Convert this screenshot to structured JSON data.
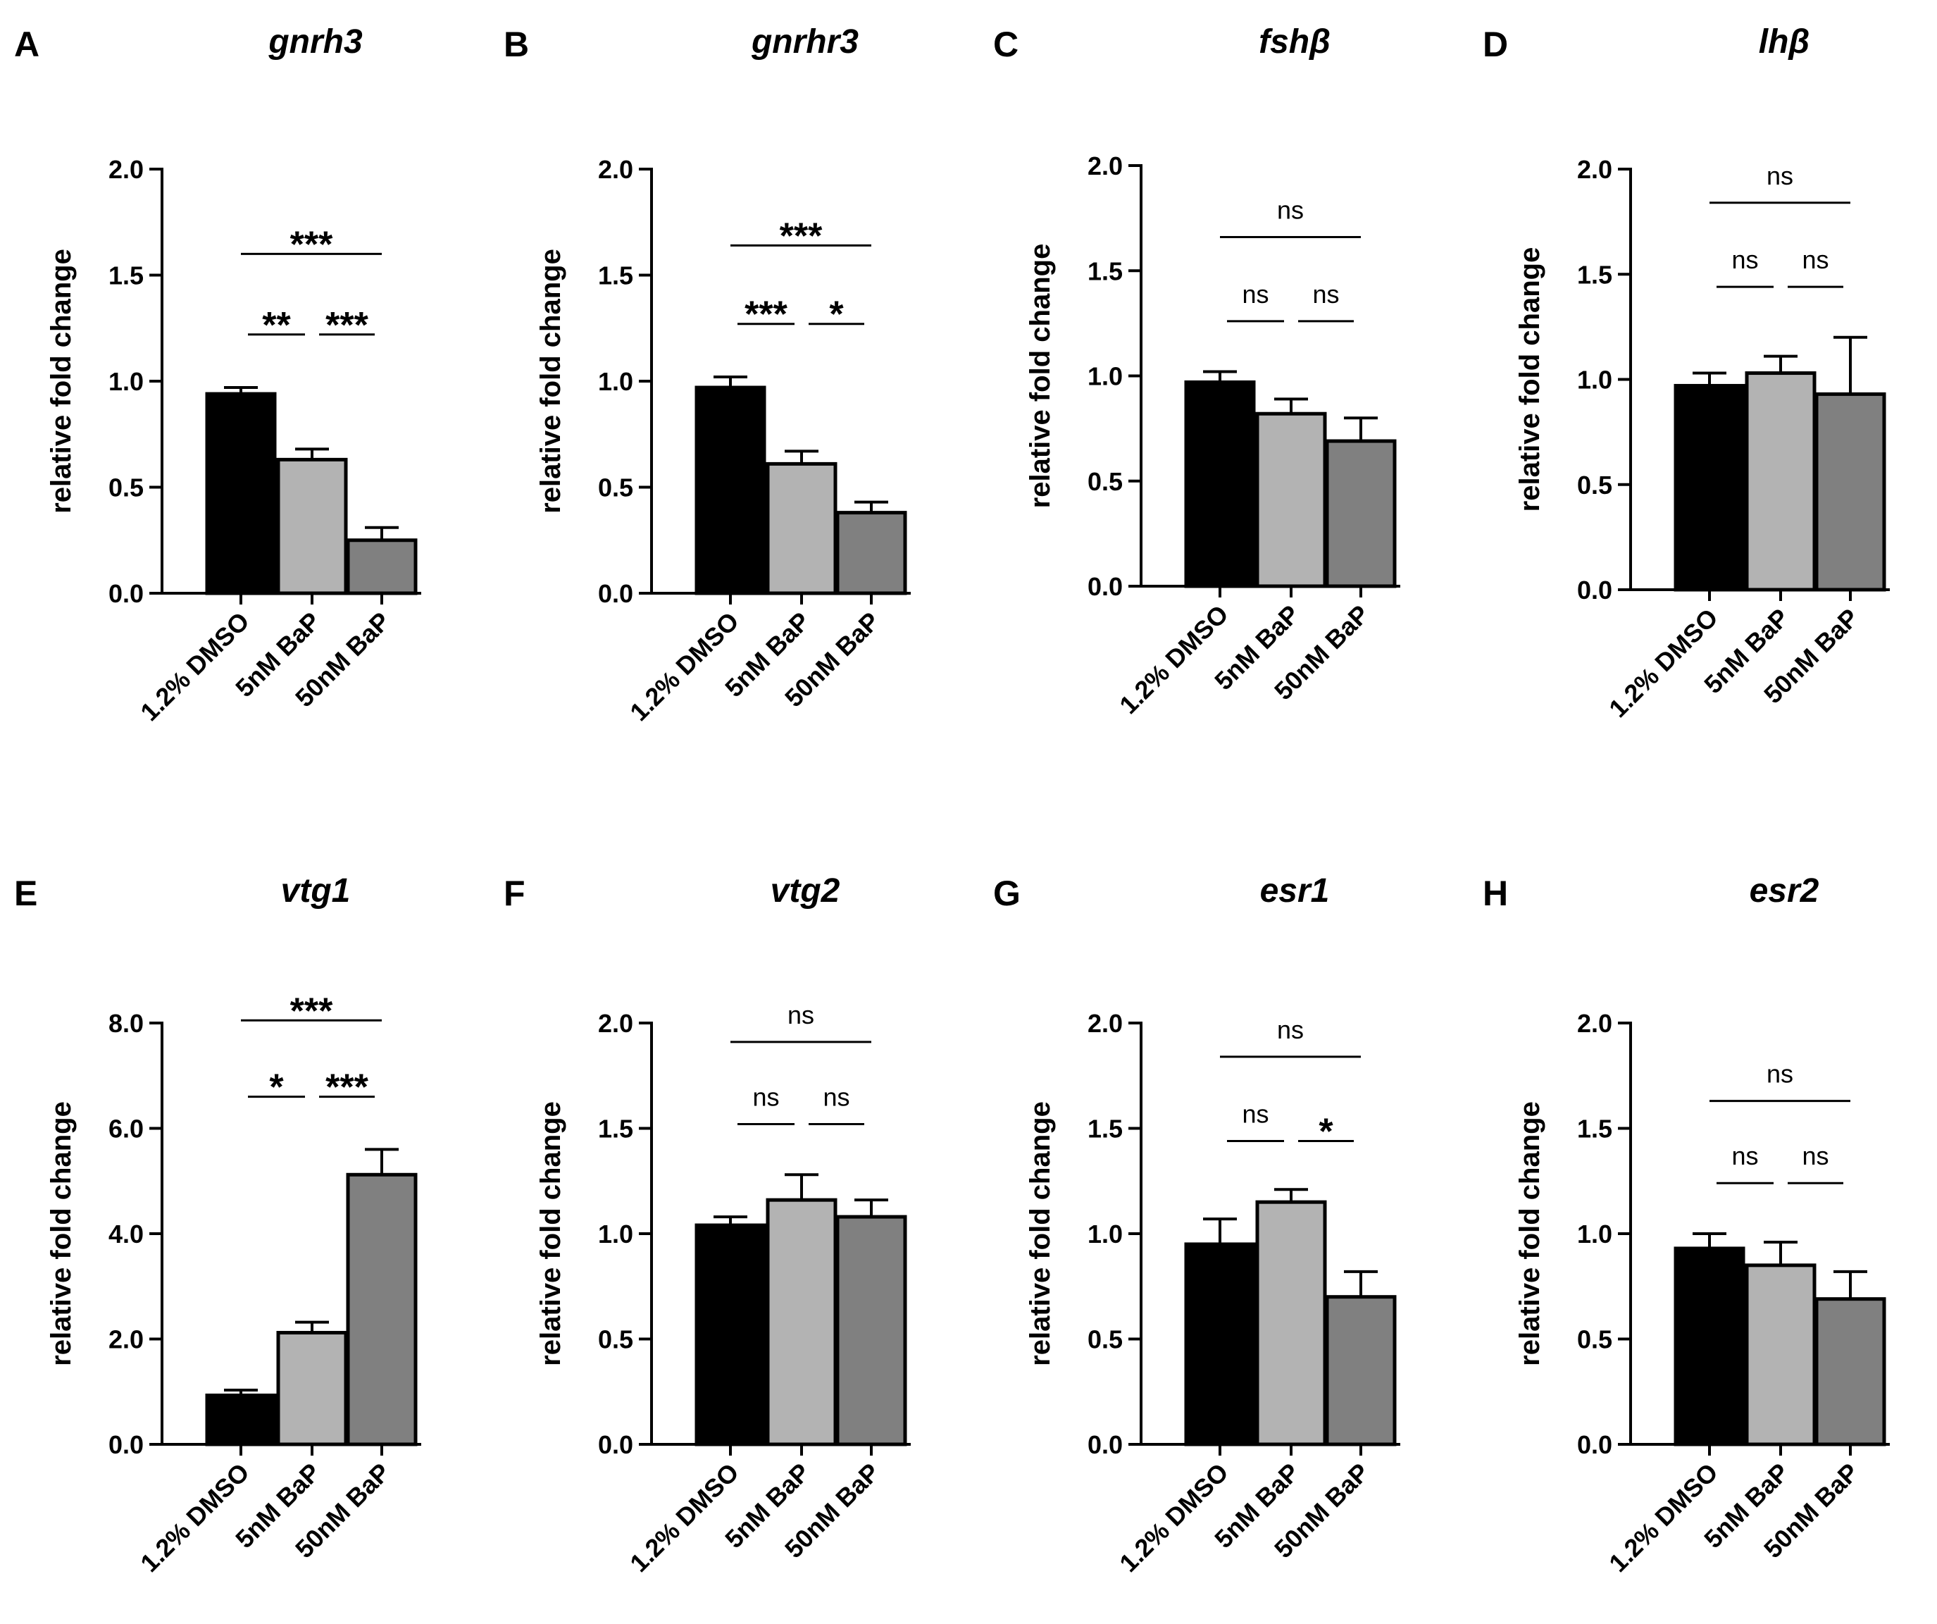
{
  "colors": {
    "bar_dmso": "#000000",
    "bar_5nm": "#b3b3b3",
    "bar_50nm": "#808080"
  },
  "chart_data": [
    {
      "type": "bar",
      "panel": "A",
      "title": "gnrh3",
      "ylabel": "relative fold change",
      "categories": [
        "1.2% DMSO",
        "5nM BaP",
        "50nM BaP"
      ],
      "values": [
        0.94,
        0.63,
        0.25
      ],
      "errors": [
        0.03,
        0.05,
        0.06
      ],
      "ylim": [
        0,
        2.0
      ],
      "yticks": [
        "0.0",
        "0.5",
        "1.0",
        "1.5",
        "2.0"
      ],
      "significance": [
        {
          "from": 0,
          "to": 1,
          "label": "**",
          "y": 1.22
        },
        {
          "from": 1,
          "to": 2,
          "label": "***",
          "y": 1.22
        },
        {
          "from": 0,
          "to": 2,
          "label": "***",
          "y": 1.6
        }
      ]
    },
    {
      "type": "bar",
      "panel": "B",
      "title": "gnrhr3",
      "ylabel": "relative fold change",
      "categories": [
        "1.2% DMSO",
        "5nM BaP",
        "50nM BaP"
      ],
      "values": [
        0.97,
        0.61,
        0.38
      ],
      "errors": [
        0.05,
        0.06,
        0.05
      ],
      "ylim": [
        0,
        2.0
      ],
      "yticks": [
        "0.0",
        "0.5",
        "1.0",
        "1.5",
        "2.0"
      ],
      "significance": [
        {
          "from": 0,
          "to": 1,
          "label": "***",
          "y": 1.27
        },
        {
          "from": 1,
          "to": 2,
          "label": "*",
          "y": 1.27
        },
        {
          "from": 0,
          "to": 2,
          "label": "***",
          "y": 1.64
        }
      ]
    },
    {
      "type": "bar",
      "panel": "C",
      "title": "fshβ",
      "ylabel": "relative fold change",
      "categories": [
        "1.2% DMSO",
        "5nM BaP",
        "50nM BaP"
      ],
      "values": [
        0.97,
        0.82,
        0.69
      ],
      "errors": [
        0.05,
        0.07,
        0.11
      ],
      "ylim": [
        0,
        2.0
      ],
      "yticks": [
        "0.0",
        "0.5",
        "1.0",
        "1.5",
        "2.0"
      ],
      "significance": [
        {
          "from": 0,
          "to": 1,
          "label": "ns",
          "y": 1.26
        },
        {
          "from": 1,
          "to": 2,
          "label": "ns",
          "y": 1.26
        },
        {
          "from": 0,
          "to": 2,
          "label": "ns",
          "y": 1.66
        }
      ]
    },
    {
      "type": "bar",
      "panel": "D",
      "title": "lhβ",
      "ylabel": "relative fold change",
      "categories": [
        "1.2% DMSO",
        "5nM BaP",
        "50nM BaP"
      ],
      "values": [
        0.97,
        1.03,
        0.93
      ],
      "errors": [
        0.06,
        0.08,
        0.27
      ],
      "ylim": [
        0,
        2.0
      ],
      "yticks": [
        "0.0",
        "0.5",
        "1.0",
        "1.5",
        "2.0"
      ],
      "significance": [
        {
          "from": 0,
          "to": 1,
          "label": "ns",
          "y": 1.44
        },
        {
          "from": 1,
          "to": 2,
          "label": "ns",
          "y": 1.44
        },
        {
          "from": 0,
          "to": 2,
          "label": "ns",
          "y": 1.84
        }
      ]
    },
    {
      "type": "bar",
      "panel": "E",
      "title": "vtg1",
      "ylabel": "relative fold change",
      "categories": [
        "1.2% DMSO",
        "5nM BaP",
        "50nM BaP"
      ],
      "values": [
        0.93,
        2.12,
        5.12
      ],
      "errors": [
        0.1,
        0.2,
        0.48
      ],
      "ylim": [
        0,
        8.0
      ],
      "yticks": [
        "0.0",
        "2.0",
        "4.0",
        "6.0",
        "8.0"
      ],
      "significance": [
        {
          "from": 0,
          "to": 1,
          "label": "*",
          "y": 6.6
        },
        {
          "from": 1,
          "to": 2,
          "label": "***",
          "y": 6.6
        },
        {
          "from": 0,
          "to": 2,
          "label": "***",
          "y": 8.05
        }
      ]
    },
    {
      "type": "bar",
      "panel": "F",
      "title": "vtg2",
      "ylabel": "relative fold change",
      "categories": [
        "1.2% DMSO",
        "5nM BaP",
        "50nM BaP"
      ],
      "values": [
        1.04,
        1.16,
        1.08
      ],
      "errors": [
        0.04,
        0.12,
        0.08
      ],
      "ylim": [
        0,
        2.0
      ],
      "yticks": [
        "0.0",
        "0.5",
        "1.0",
        "1.5",
        "2.0"
      ],
      "significance": [
        {
          "from": 0,
          "to": 1,
          "label": "ns",
          "y": 1.52
        },
        {
          "from": 1,
          "to": 2,
          "label": "ns",
          "y": 1.52
        },
        {
          "from": 0,
          "to": 2,
          "label": "ns",
          "y": 1.91
        }
      ]
    },
    {
      "type": "bar",
      "panel": "G",
      "title": "esr1",
      "ylabel": "relative fold change",
      "categories": [
        "1.2% DMSO",
        "5nM BaP",
        "50nM BaP"
      ],
      "values": [
        0.95,
        1.15,
        0.7
      ],
      "errors": [
        0.12,
        0.06,
        0.12
      ],
      "ylim": [
        0,
        2.0
      ],
      "yticks": [
        "0.0",
        "0.5",
        "1.0",
        "1.5",
        "2.0"
      ],
      "significance": [
        {
          "from": 0,
          "to": 1,
          "label": "ns",
          "y": 1.44
        },
        {
          "from": 1,
          "to": 2,
          "label": "*",
          "y": 1.44
        },
        {
          "from": 0,
          "to": 2,
          "label": "ns",
          "y": 1.84
        }
      ]
    },
    {
      "type": "bar",
      "panel": "H",
      "title": "esr2",
      "ylabel": "relative fold change",
      "categories": [
        "1.2% DMSO",
        "5nM BaP",
        "50nM BaP"
      ],
      "values": [
        0.93,
        0.85,
        0.69
      ],
      "errors": [
        0.07,
        0.11,
        0.13
      ],
      "ylim": [
        0,
        2.0
      ],
      "yticks": [
        "0.0",
        "0.5",
        "1.0",
        "1.5",
        "2.0"
      ],
      "significance": [
        {
          "from": 0,
          "to": 1,
          "label": "ns",
          "y": 1.24
        },
        {
          "from": 1,
          "to": 2,
          "label": "ns",
          "y": 1.24
        },
        {
          "from": 0,
          "to": 2,
          "label": "ns",
          "y": 1.63
        }
      ]
    }
  ]
}
